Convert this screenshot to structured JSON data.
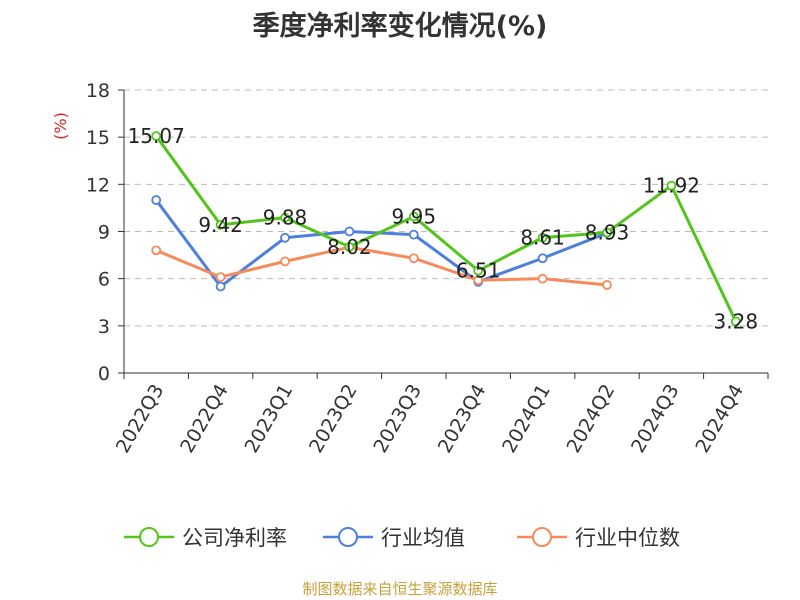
{
  "chart_data": {
    "type": "line",
    "title": "季度净利率变化情况(%)",
    "ylabel": "(%)",
    "xlabel": "",
    "ylim": [
      0,
      18
    ],
    "yticks": [
      0,
      3,
      6,
      9,
      12,
      15,
      18
    ],
    "grid": "horizontal-dashed",
    "legend_position": "bottom",
    "categories": [
      "2022Q3",
      "2022Q4",
      "2023Q1",
      "2023Q2",
      "2023Q3",
      "2023Q4",
      "2024Q1",
      "2024Q2",
      "2024Q3",
      "2024Q4"
    ],
    "series": [
      {
        "name": "公司净利率",
        "color": "#52c41a",
        "values": [
          15.07,
          9.42,
          9.88,
          8.02,
          9.95,
          6.51,
          8.61,
          8.93,
          11.92,
          3.28
        ],
        "data_labels": [
          "15.07",
          "9.42",
          "9.88",
          "8.02",
          "9.95",
          "6.51",
          "8.61",
          "8.93",
          "11.92",
          "3.28"
        ]
      },
      {
        "name": "行业均值",
        "color": "#4e7fdc",
        "values": [
          11.0,
          5.5,
          8.6,
          9.0,
          8.8,
          5.8,
          7.3,
          8.9,
          null,
          null
        ]
      },
      {
        "name": "行业中位数",
        "color": "#f58b5a",
        "values": [
          7.8,
          6.1,
          7.1,
          8.0,
          7.3,
          5.9,
          6.0,
          5.6,
          null,
          null
        ]
      }
    ]
  },
  "source_text": "制图数据来自恒生聚源数据库"
}
